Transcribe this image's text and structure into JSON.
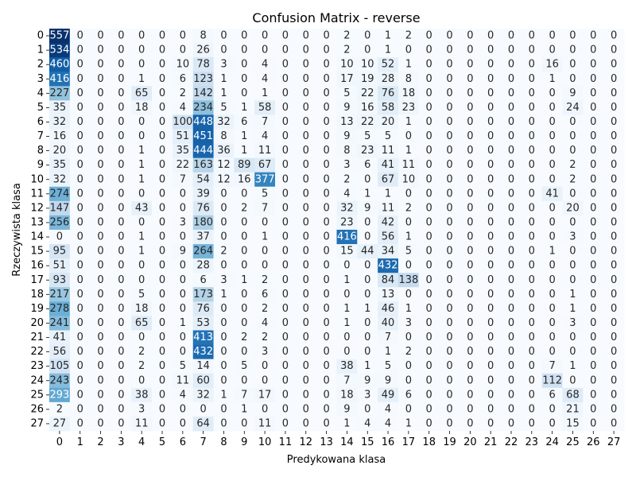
{
  "chart_data": {
    "type": "heatmap",
    "title": "Confusion Matrix - reverse",
    "xlabel": "Predykowana klasa",
    "ylabel": "Rzeczywista klasa",
    "x_categories": [
      "0",
      "1",
      "2",
      "3",
      "4",
      "5",
      "6",
      "7",
      "8",
      "9",
      "10",
      "11",
      "12",
      "13",
      "14",
      "15",
      "16",
      "17",
      "18",
      "19",
      "20",
      "21",
      "22",
      "23",
      "24",
      "25",
      "26",
      "27"
    ],
    "y_categories": [
      "0",
      "1",
      "2",
      "3",
      "4",
      "5",
      "6",
      "7",
      "8",
      "9",
      "10",
      "11",
      "12",
      "13",
      "14",
      "15",
      "16",
      "17",
      "18",
      "19",
      "20",
      "21",
      "22",
      "23",
      "24",
      "25",
      "26",
      "27"
    ],
    "colormap": "Blues",
    "colorbar": false,
    "values": [
      [
        557,
        0,
        0,
        0,
        0,
        0,
        0,
        8,
        0,
        0,
        0,
        0,
        0,
        0,
        2,
        0,
        1,
        2,
        0,
        0,
        0,
        0,
        0,
        0,
        0,
        0,
        0,
        0
      ],
      [
        534,
        0,
        0,
        0,
        0,
        0,
        0,
        26,
        0,
        0,
        0,
        0,
        0,
        0,
        2,
        0,
        1,
        0,
        0,
        0,
        0,
        0,
        0,
        0,
        0,
        0,
        0,
        0
      ],
      [
        460,
        0,
        0,
        0,
        0,
        0,
        10,
        78,
        3,
        0,
        4,
        0,
        0,
        0,
        10,
        10,
        52,
        1,
        0,
        0,
        0,
        0,
        0,
        0,
        16,
        0,
        0,
        0
      ],
      [
        416,
        0,
        0,
        0,
        1,
        0,
        6,
        123,
        1,
        0,
        4,
        0,
        0,
        0,
        17,
        19,
        28,
        8,
        0,
        0,
        0,
        0,
        0,
        0,
        1,
        0,
        0,
        0
      ],
      [
        227,
        0,
        0,
        0,
        65,
        0,
        2,
        142,
        1,
        0,
        1,
        0,
        0,
        0,
        5,
        22,
        76,
        18,
        0,
        0,
        0,
        0,
        0,
        0,
        0,
        9,
        0,
        0
      ],
      [
        35,
        0,
        0,
        0,
        18,
        0,
        4,
        234,
        5,
        1,
        58,
        0,
        0,
        0,
        9,
        16,
        58,
        23,
        0,
        0,
        0,
        0,
        0,
        0,
        0,
        24,
        0,
        0
      ],
      [
        32,
        0,
        0,
        0,
        0,
        0,
        100,
        448,
        32,
        6,
        7,
        0,
        0,
        0,
        13,
        22,
        20,
        1,
        0,
        0,
        0,
        0,
        0,
        0,
        0,
        0,
        0,
        0
      ],
      [
        16,
        0,
        0,
        0,
        0,
        0,
        51,
        451,
        8,
        1,
        4,
        0,
        0,
        0,
        9,
        5,
        5,
        0,
        0,
        0,
        0,
        0,
        0,
        0,
        0,
        0,
        0,
        0
      ],
      [
        20,
        0,
        0,
        0,
        1,
        0,
        35,
        444,
        36,
        1,
        11,
        0,
        0,
        0,
        8,
        23,
        11,
        1,
        0,
        0,
        0,
        0,
        0,
        0,
        0,
        0,
        0,
        0
      ],
      [
        35,
        0,
        0,
        0,
        1,
        0,
        22,
        163,
        12,
        89,
        67,
        0,
        0,
        0,
        3,
        6,
        41,
        11,
        0,
        0,
        0,
        0,
        0,
        0,
        0,
        2,
        0,
        0
      ],
      [
        32,
        0,
        0,
        0,
        1,
        0,
        7,
        54,
        12,
        16,
        377,
        0,
        0,
        0,
        2,
        0,
        67,
        10,
        0,
        0,
        0,
        0,
        0,
        0,
        0,
        2,
        0,
        0
      ],
      [
        274,
        0,
        0,
        0,
        0,
        0,
        0,
        39,
        0,
        0,
        5,
        0,
        0,
        0,
        4,
        1,
        1,
        0,
        0,
        0,
        0,
        0,
        0,
        0,
        41,
        0,
        0,
        0
      ],
      [
        147,
        0,
        0,
        0,
        43,
        0,
        0,
        76,
        0,
        2,
        7,
        0,
        0,
        0,
        32,
        9,
        11,
        2,
        0,
        0,
        0,
        0,
        0,
        0,
        0,
        20,
        0,
        0
      ],
      [
        256,
        0,
        0,
        0,
        0,
        0,
        3,
        180,
        0,
        0,
        0,
        0,
        0,
        0,
        23,
        0,
        42,
        0,
        0,
        0,
        0,
        0,
        0,
        0,
        0,
        0,
        0,
        0
      ],
      [
        0,
        0,
        0,
        0,
        1,
        0,
        0,
        37,
        0,
        0,
        1,
        0,
        0,
        0,
        416,
        0,
        56,
        1,
        0,
        0,
        0,
        0,
        0,
        0,
        0,
        3,
        0,
        0
      ],
      [
        95,
        0,
        0,
        0,
        1,
        0,
        9,
        264,
        2,
        0,
        0,
        0,
        0,
        0,
        15,
        44,
        34,
        5,
        0,
        0,
        0,
        0,
        0,
        0,
        1,
        0,
        0,
        0
      ],
      [
        51,
        0,
        0,
        0,
        0,
        0,
        0,
        28,
        0,
        0,
        0,
        0,
        0,
        0,
        0,
        0,
        432,
        0,
        0,
        0,
        0,
        0,
        0,
        0,
        0,
        0,
        0,
        0
      ],
      [
        93,
        0,
        0,
        0,
        0,
        0,
        0,
        6,
        3,
        1,
        2,
        0,
        0,
        0,
        1,
        0,
        84,
        138,
        0,
        0,
        0,
        0,
        0,
        0,
        0,
        0,
        0,
        0
      ],
      [
        217,
        0,
        0,
        0,
        5,
        0,
        0,
        173,
        1,
        0,
        6,
        0,
        0,
        0,
        0,
        0,
        13,
        0,
        0,
        0,
        0,
        0,
        0,
        0,
        0,
        1,
        0,
        0
      ],
      [
        278,
        0,
        0,
        0,
        18,
        0,
        0,
        76,
        0,
        0,
        2,
        0,
        0,
        0,
        1,
        1,
        46,
        1,
        0,
        0,
        0,
        0,
        0,
        0,
        0,
        1,
        0,
        0
      ],
      [
        241,
        0,
        0,
        0,
        65,
        0,
        1,
        53,
        0,
        0,
        4,
        0,
        0,
        0,
        1,
        0,
        40,
        3,
        0,
        0,
        0,
        0,
        0,
        0,
        0,
        3,
        0,
        0
      ],
      [
        41,
        0,
        0,
        0,
        0,
        0,
        0,
        413,
        0,
        2,
        2,
        0,
        0,
        0,
        0,
        0,
        7,
        0,
        0,
        0,
        0,
        0,
        0,
        0,
        0,
        0,
        0,
        0
      ],
      [
        56,
        0,
        0,
        0,
        2,
        0,
        0,
        432,
        0,
        0,
        3,
        0,
        0,
        0,
        0,
        0,
        1,
        2,
        0,
        0,
        0,
        0,
        0,
        0,
        0,
        0,
        0,
        0
      ],
      [
        105,
        0,
        0,
        0,
        2,
        0,
        5,
        14,
        0,
        5,
        0,
        0,
        0,
        0,
        38,
        1,
        5,
        0,
        0,
        0,
        0,
        0,
        0,
        0,
        7,
        1,
        0,
        0
      ],
      [
        243,
        0,
        0,
        0,
        0,
        0,
        11,
        60,
        0,
        0,
        0,
        0,
        0,
        0,
        7,
        9,
        9,
        0,
        0,
        0,
        0,
        0,
        0,
        0,
        112,
        0,
        0,
        0
      ],
      [
        293,
        0,
        0,
        0,
        38,
        0,
        4,
        32,
        1,
        7,
        17,
        0,
        0,
        0,
        18,
        3,
        49,
        6,
        0,
        0,
        0,
        0,
        0,
        0,
        6,
        68,
        0,
        0
      ],
      [
        2,
        0,
        0,
        0,
        3,
        0,
        0,
        0,
        0,
        1,
        0,
        0,
        0,
        0,
        9,
        0,
        4,
        0,
        0,
        0,
        0,
        0,
        0,
        0,
        0,
        21,
        0,
        0
      ],
      [
        27,
        0,
        0,
        0,
        11,
        0,
        0,
        64,
        0,
        0,
        11,
        0,
        0,
        0,
        1,
        4,
        4,
        1,
        0,
        0,
        0,
        0,
        0,
        0,
        0,
        15,
        0,
        0
      ]
    ]
  }
}
